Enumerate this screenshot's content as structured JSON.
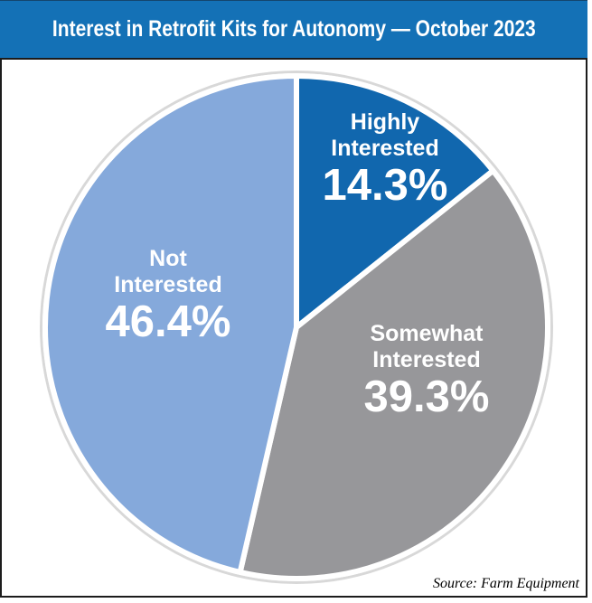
{
  "header": {
    "title": "Interest in Retrofit Kits for Autonomy — October 2023",
    "background": "#1471b6",
    "text_color": "#ffffff"
  },
  "chart_data": {
    "type": "pie",
    "title": "Interest in Retrofit Kits for Autonomy — October 2023",
    "start_angle_deg": 0,
    "direction": "clockwise",
    "labels_on_slices": true,
    "legend": "none",
    "slice_separator_color": "#ffffff",
    "slices": [
      {
        "label": "Highly Interested",
        "value": 14.3,
        "display": "14.3%",
        "color": "#1167ae"
      },
      {
        "label": "Somewhat Interested",
        "value": 39.3,
        "display": "39.3%",
        "color": "#97979a"
      },
      {
        "label": "Not Interested",
        "value": 46.4,
        "display": "46.4%",
        "color": "#85a9db"
      }
    ]
  },
  "source": {
    "text": "Source: Farm Equipment"
  }
}
